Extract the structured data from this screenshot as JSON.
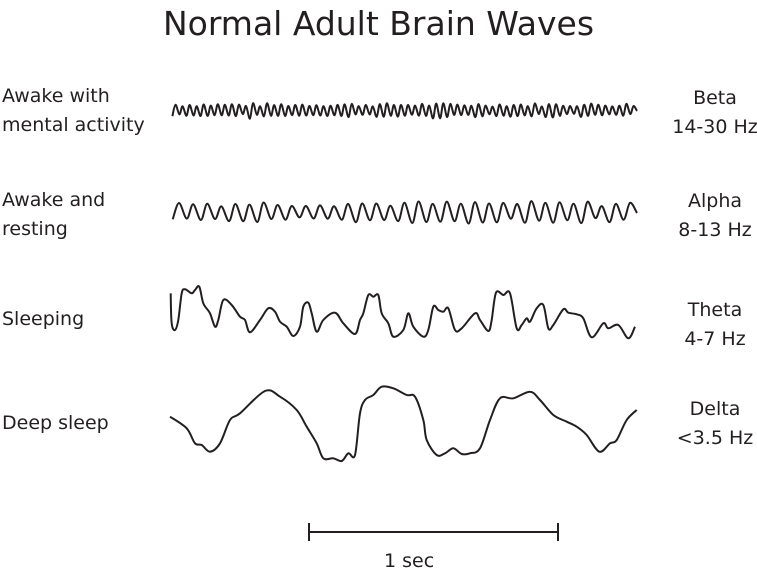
{
  "title": "Normal Adult Brain Waves",
  "rows": [
    {
      "state": [
        "Awake with",
        "mental activity"
      ],
      "band": "Beta",
      "freq": "14-30 Hz"
    },
    {
      "state": [
        "Awake and",
        "resting"
      ],
      "band": "Alpha",
      "freq": "8-13 Hz"
    },
    {
      "state": [
        "Sleeping"
      ],
      "band": "Theta",
      "freq": "4-7 Hz"
    },
    {
      "state": [
        "Deep sleep"
      ],
      "band": "Delta",
      "freq": "<3.5 Hz"
    }
  ],
  "scale_bar": {
    "label": "1 sec",
    "duration_s": 1
  },
  "colors": {
    "ink": "#231f20",
    "background": "#ffffff"
  }
}
